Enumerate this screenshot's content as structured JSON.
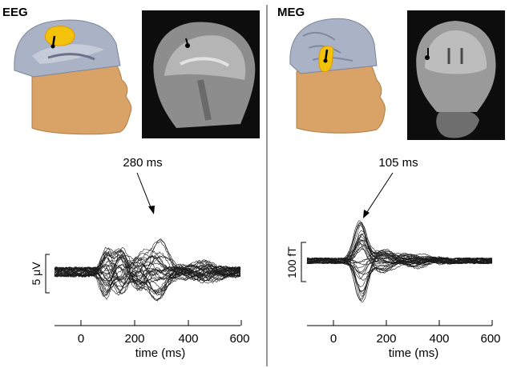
{
  "panels": {
    "left": {
      "label": "EEG",
      "peak_label": "280 ms",
      "peak_time_ms": 280,
      "scale_label": "5 μV",
      "xlabel": "time (ms)",
      "xticks": [
        "0",
        "200",
        "400",
        "600"
      ],
      "xlim": [
        -100,
        600
      ]
    },
    "right": {
      "label": "MEG",
      "peak_label": "105 ms",
      "peak_time_ms": 105,
      "scale_label": "100 fT",
      "xlabel": "time (ms)",
      "xticks": [
        "0",
        "200",
        "400",
        "600"
      ],
      "xlim": [
        -100,
        600
      ]
    }
  },
  "colors": {
    "skin": "#d9a267",
    "brain": "#aab3c6",
    "activation": "#f3c20a",
    "mri_bg": "#0d0d0d",
    "trace": "#1a1a1a"
  }
}
